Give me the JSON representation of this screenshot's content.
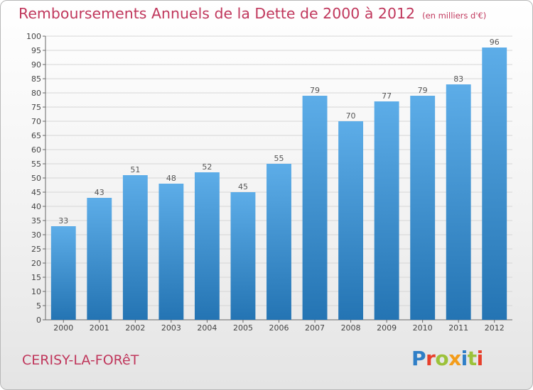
{
  "header": {
    "title": "Remboursements Annuels de la Dette de 2000 à 2012",
    "subtitle": "(en milliers d'€)"
  },
  "footer": {
    "town": "CERISY-LA-FORêT",
    "brand": "Proxiti",
    "brand_colors": [
      "#2f7fc7",
      "#e7402c",
      "#9cc23a",
      "#f39c1a",
      "#2f7fc7",
      "#9cc23a",
      "#e7402c"
    ]
  },
  "colors": {
    "bar_light": "#5dade8",
    "bar_dark": "#2474b3",
    "title": "#c0375c",
    "grid": "#d6d6d6"
  },
  "chart_data": {
    "type": "bar",
    "categories": [
      "2000",
      "2001",
      "2002",
      "2003",
      "2004",
      "2005",
      "2006",
      "2007",
      "2008",
      "2009",
      "2010",
      "2011",
      "2012"
    ],
    "values": [
      33,
      43,
      51,
      48,
      52,
      45,
      55,
      79,
      70,
      77,
      79,
      83,
      96
    ],
    "title": "Remboursements Annuels de la Dette de 2000 à 2012",
    "subtitle": "(en milliers d'€)",
    "xlabel": "",
    "ylabel": "",
    "ylim": [
      0,
      100
    ],
    "ytick_step": 5,
    "grid": true,
    "data_labels": true
  }
}
